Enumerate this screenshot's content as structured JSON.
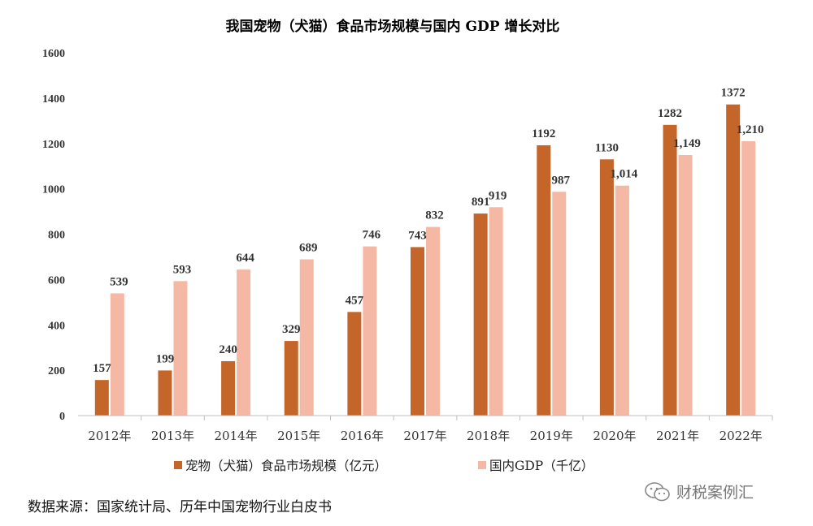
{
  "chart_data": {
    "type": "bar",
    "title": "我国宠物（犬猫）食品市场规模与国内 GDP 增长对比",
    "categories": [
      "2012年",
      "2013年",
      "2014年",
      "2015年",
      "2016年",
      "2017年",
      "2018年",
      "2019年",
      "2020年",
      "2021年",
      "2022年"
    ],
    "series": [
      {
        "name": "宠物（犬猫）食品市场规模（亿元）",
        "color": "#C4652A",
        "values": [
          157,
          199,
          240,
          329,
          457,
          743,
          891,
          1192,
          1130,
          1282,
          1372
        ],
        "labels": [
          "157",
          "199",
          "240",
          "329",
          "457",
          "743",
          "891",
          "1192",
          "1130",
          "1282",
          "1372"
        ]
      },
      {
        "name": "国内GDP（千亿）",
        "color": "#F4B8A5",
        "values": [
          539,
          593,
          644,
          689,
          746,
          832,
          919,
          987,
          1014,
          1149,
          1210
        ],
        "labels": [
          "539",
          "593",
          "644",
          "689",
          "746",
          "832",
          "919",
          "987",
          "1,014",
          "1,149",
          "1,210"
        ]
      }
    ],
    "yticks": [
      "0",
      "200",
      "400",
      "600",
      "800",
      "1000",
      "1200",
      "1400",
      "1600"
    ],
    "ylim": [
      0,
      1600
    ],
    "xlabel": "",
    "ylabel": "",
    "legend_position": "bottom",
    "grid": false
  },
  "footer": {
    "source": "数据来源：国家统计局、历年中国宠物行业白皮书",
    "watermark": "财税案例汇",
    "watermark_icon": "wechat-icon"
  }
}
